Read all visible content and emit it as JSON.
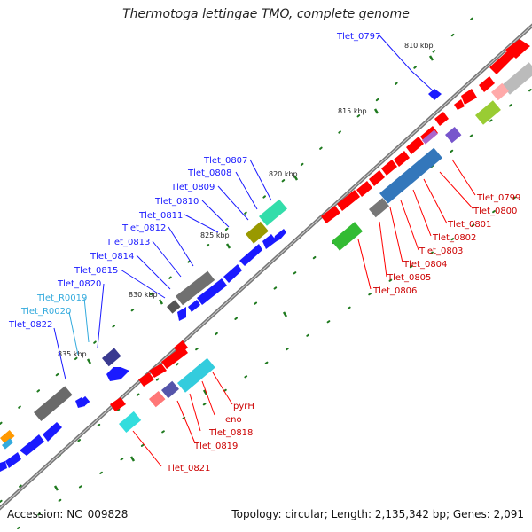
{
  "header": {
    "title": "Thermotoga lettingae TMO, complete genome"
  },
  "footer": {
    "accession": "Accession: NC_009828",
    "summary": "Topology: circular; Length: 2,135,342 bp; Genes: 2,091"
  },
  "scale": {
    "labels": [
      "810 kbp",
      "815 kbp",
      "820 kbp",
      "825 kbp",
      "830 kbp",
      "835 kbp"
    ]
  },
  "labels": {
    "upper_blue": [
      "Tlet_0797",
      "Tlet_0807",
      "Tlet_0808",
      "Tlet_0809",
      "Tlet_0810",
      "Tlet_0811",
      "Tlet_0812",
      "Tlet_0813",
      "Tlet_0814",
      "Tlet_0815",
      "Tlet_0820",
      "Tlet_0822"
    ],
    "rna": [
      "Tlet_R0019",
      "Tlet_R0020"
    ],
    "lower_red": [
      "Tlet_0799",
      "Tlet_0800",
      "Tlet_0801",
      "Tlet_0802",
      "Tlet_0803",
      "Tlet_0804",
      "Tlet_0805",
      "Tlet_0806",
      "pyrH",
      "eno",
      "Tlet_0818",
      "Tlet_0819",
      "Tlet_0821"
    ]
  },
  "colors": {
    "forward": "#1a1aff",
    "reverse": "#ff0000",
    "rna": "#33aadd",
    "backbone": "#777777",
    "tick": "#1f7a1f"
  }
}
